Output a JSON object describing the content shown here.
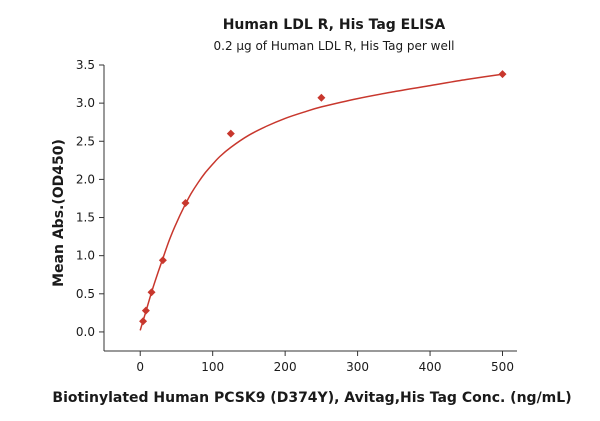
{
  "chart_data": {
    "type": "scatter",
    "title": "Human LDL R, His Tag ELISA",
    "subtitle": "0.2 μg of Human LDL R, His Tag per well",
    "xlabel": "Biotinylated Human PCSK9 (D374Y), Avitag,His Tag Conc. (ng/mL)",
    "ylabel": "Mean Abs.(OD450)",
    "xlim": [
      -50,
      520
    ],
    "ylim": [
      -0.25,
      3.5
    ],
    "xticks": [
      0,
      100,
      200,
      300,
      400,
      500
    ],
    "yticks": [
      0.0,
      0.5,
      1.0,
      1.5,
      2.0,
      2.5,
      3.0,
      3.5
    ],
    "ytick_labels": [
      "0.0",
      "0.5",
      "1.0",
      "1.5",
      "2.0",
      "2.5",
      "3.0",
      "3.5"
    ],
    "grid": false,
    "marker": "diamond",
    "color": "#c8372d",
    "points": [
      {
        "x": 3.9,
        "y": 0.14
      },
      {
        "x": 7.8,
        "y": 0.28
      },
      {
        "x": 15.6,
        "y": 0.52
      },
      {
        "x": 31.25,
        "y": 0.94
      },
      {
        "x": 62.5,
        "y": 1.69
      },
      {
        "x": 125,
        "y": 2.6
      },
      {
        "x": 250,
        "y": 3.07
      },
      {
        "x": 500,
        "y": 3.38
      }
    ],
    "fit_curve": [
      {
        "x": 0,
        "y": 0.02
      },
      {
        "x": 5,
        "y": 0.18
      },
      {
        "x": 10,
        "y": 0.34
      },
      {
        "x": 15,
        "y": 0.5
      },
      {
        "x": 20,
        "y": 0.65
      },
      {
        "x": 30,
        "y": 0.93
      },
      {
        "x": 40,
        "y": 1.2
      },
      {
        "x": 50,
        "y": 1.43
      },
      {
        "x": 60,
        "y": 1.63
      },
      {
        "x": 70,
        "y": 1.81
      },
      {
        "x": 80,
        "y": 1.96
      },
      {
        "x": 90,
        "y": 2.09
      },
      {
        "x": 100,
        "y": 2.2
      },
      {
        "x": 110,
        "y": 2.3
      },
      {
        "x": 125,
        "y": 2.42
      },
      {
        "x": 150,
        "y": 2.58
      },
      {
        "x": 175,
        "y": 2.7
      },
      {
        "x": 200,
        "y": 2.8
      },
      {
        "x": 225,
        "y": 2.88
      },
      {
        "x": 250,
        "y": 2.95
      },
      {
        "x": 300,
        "y": 3.06
      },
      {
        "x": 350,
        "y": 3.15
      },
      {
        "x": 400,
        "y": 3.23
      },
      {
        "x": 450,
        "y": 3.31
      },
      {
        "x": 500,
        "y": 3.38
      }
    ]
  }
}
